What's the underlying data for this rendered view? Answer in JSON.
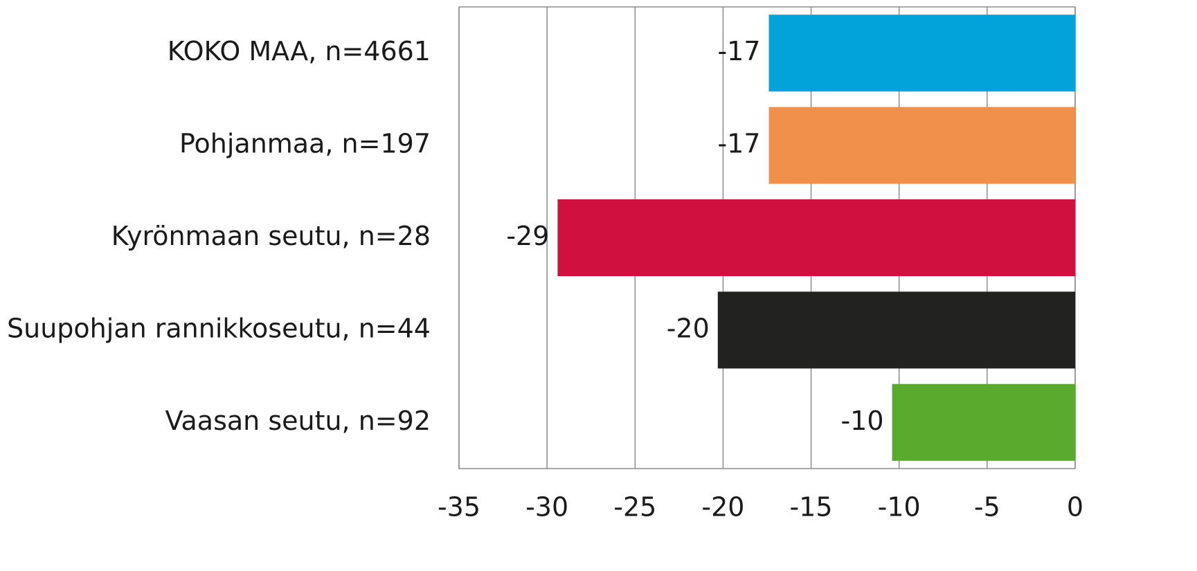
{
  "chart_data": {
    "type": "bar",
    "orientation": "horizontal",
    "categories": [
      "KOKO MAA, n=4661",
      "Pohjanmaa, n=197",
      "Kyrönmaan seutu, n=28",
      "Suupohjan rannikkoseutu, n=44",
      "Vaasan seutu, n=92"
    ],
    "values": [
      -17.4,
      -17.4,
      -29.4,
      -20.3,
      -10.4
    ],
    "value_labels": [
      "-17",
      "-17",
      "-29",
      "-20",
      "-10"
    ],
    "colors": [
      "#00a3da",
      "#f0904a",
      "#d0103e",
      "#222220",
      "#5aaa2e"
    ],
    "xlim": [
      -35,
      0
    ],
    "xticks": [
      -35,
      -30,
      -25,
      -20,
      -15,
      -10,
      -5,
      0
    ],
    "grid": true
  }
}
